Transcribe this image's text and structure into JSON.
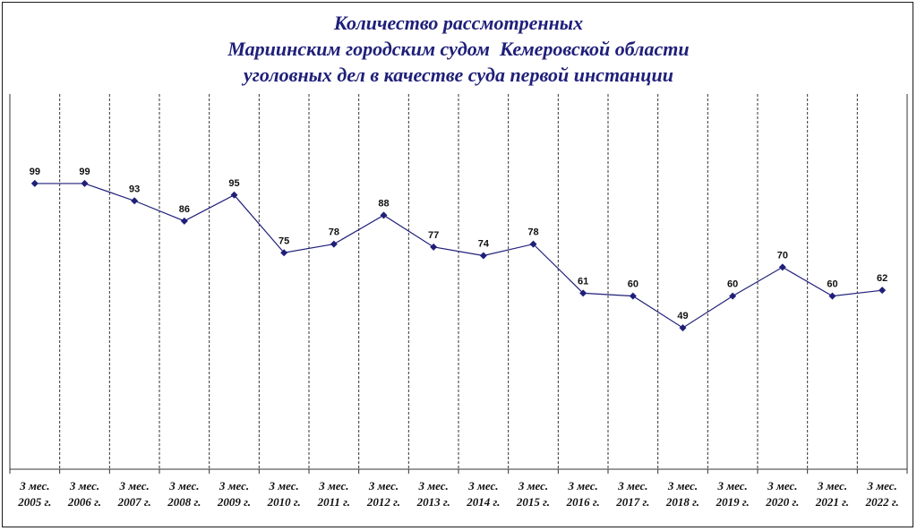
{
  "title_lines": [
    "Количество рассмотренных",
    "Мариинским городским судом  Кемеровской области",
    "уголовных дел в качестве суда первой инстанции"
  ],
  "chart_data": {
    "type": "line",
    "categories": [
      "3 мес. 2005 г.",
      "3 мес. 2006 г.",
      "3 мес. 2007 г.",
      "3 мес. 2008 г.",
      "3 мес. 2009 г.",
      "3 мес. 2010 г.",
      "3 мес. 2011 г.",
      "3 мес. 2012 г.",
      "3 мес. 2013 г.",
      "3 мес. 2014 г.",
      "3 мес. 2015 г.",
      "3 мес. 2016 г.",
      "3 мес. 2017 г.",
      "3 мес. 2018 г.",
      "3 мес. 2019 г.",
      "3 мес. 2020 г.",
      "3 мес. 2021 г.",
      "3 мес. 2022 г."
    ],
    "tick_lines": [
      [
        "3 мес.",
        "2005 г."
      ],
      [
        "3 мес.",
        "2006 г."
      ],
      [
        "3 мес.",
        "2007 г."
      ],
      [
        "3 мес.",
        "2008 г."
      ],
      [
        "3 мес.",
        "2009 г."
      ],
      [
        "3 мес.",
        "2010 г."
      ],
      [
        "3 мес.",
        "2011 г."
      ],
      [
        "3 мес.",
        "2012 г."
      ],
      [
        "3 мес.",
        "2013 г."
      ],
      [
        "3 мес.",
        "2014 г."
      ],
      [
        "3 мес.",
        "2015 г."
      ],
      [
        "3 мес.",
        "2016 г."
      ],
      [
        "3 мес.",
        "2017 г."
      ],
      [
        "3 мес.",
        "2018 г."
      ],
      [
        "3 мес.",
        "2019 г."
      ],
      [
        "3 мес.",
        "2020 г."
      ],
      [
        "3 мес.",
        "2021 г."
      ],
      [
        "3 мес.",
        "2022 г."
      ]
    ],
    "series": [
      {
        "values": [
          99,
          99,
          93,
          86,
          95,
          75,
          78,
          88,
          77,
          74,
          78,
          61,
          60,
          49,
          60,
          70,
          60,
          62
        ]
      }
    ],
    "ylim": [
      0,
      130
    ],
    "grid": "vertical-dashed",
    "line_color": "#1f1f7a",
    "title": "Количество рассмотренных Мариинским городским судом  Кемеровской области уголовных дел в качестве суда первой инстанции"
  }
}
